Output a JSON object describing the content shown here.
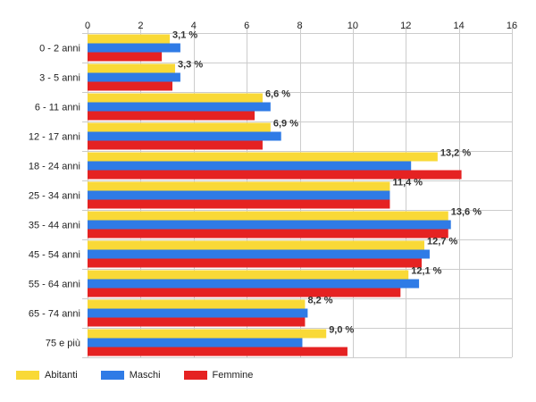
{
  "chart_data": {
    "type": "bar",
    "orientation": "horizontal",
    "title": "",
    "xlabel": "",
    "ylabel": "",
    "xlim": [
      0,
      16
    ],
    "x_ticks": [
      "0",
      "2",
      "4",
      "6",
      "8",
      "10",
      "12",
      "14",
      "16"
    ],
    "grid": true,
    "legend_position": "bottom-left",
    "categories": [
      "0 - 2 anni",
      "3 - 5 anni",
      "6 - 11 anni",
      "12 - 17 anni",
      "18 - 24 anni",
      "25 - 34 anni",
      "35 - 44 anni",
      "45 - 54 anni",
      "55 - 64 anni",
      "65 - 74 anni",
      "75 e più"
    ],
    "series": [
      {
        "name": "Abitanti",
        "color": "#f9d937",
        "values": [
          3.1,
          3.3,
          6.6,
          6.9,
          13.2,
          11.4,
          13.6,
          12.7,
          12.1,
          8.2,
          9.0
        ],
        "labels": [
          "3,1 %",
          "3,3 %",
          "6,6 %",
          "6,9 %",
          "13,2 %",
          "11,4 %",
          "13,6 %",
          "12,7 %",
          "12,1 %",
          "8,2 %",
          "9,0 %"
        ]
      },
      {
        "name": "Maschi",
        "color": "#2f7be6",
        "values": [
          3.5,
          3.5,
          6.9,
          7.3,
          12.2,
          11.4,
          13.7,
          12.9,
          12.5,
          8.3,
          8.1
        ]
      },
      {
        "name": "Femmine",
        "color": "#e52222",
        "values": [
          2.8,
          3.2,
          6.3,
          6.6,
          14.1,
          11.4,
          13.6,
          12.6,
          11.8,
          8.2,
          9.8
        ]
      }
    ]
  }
}
